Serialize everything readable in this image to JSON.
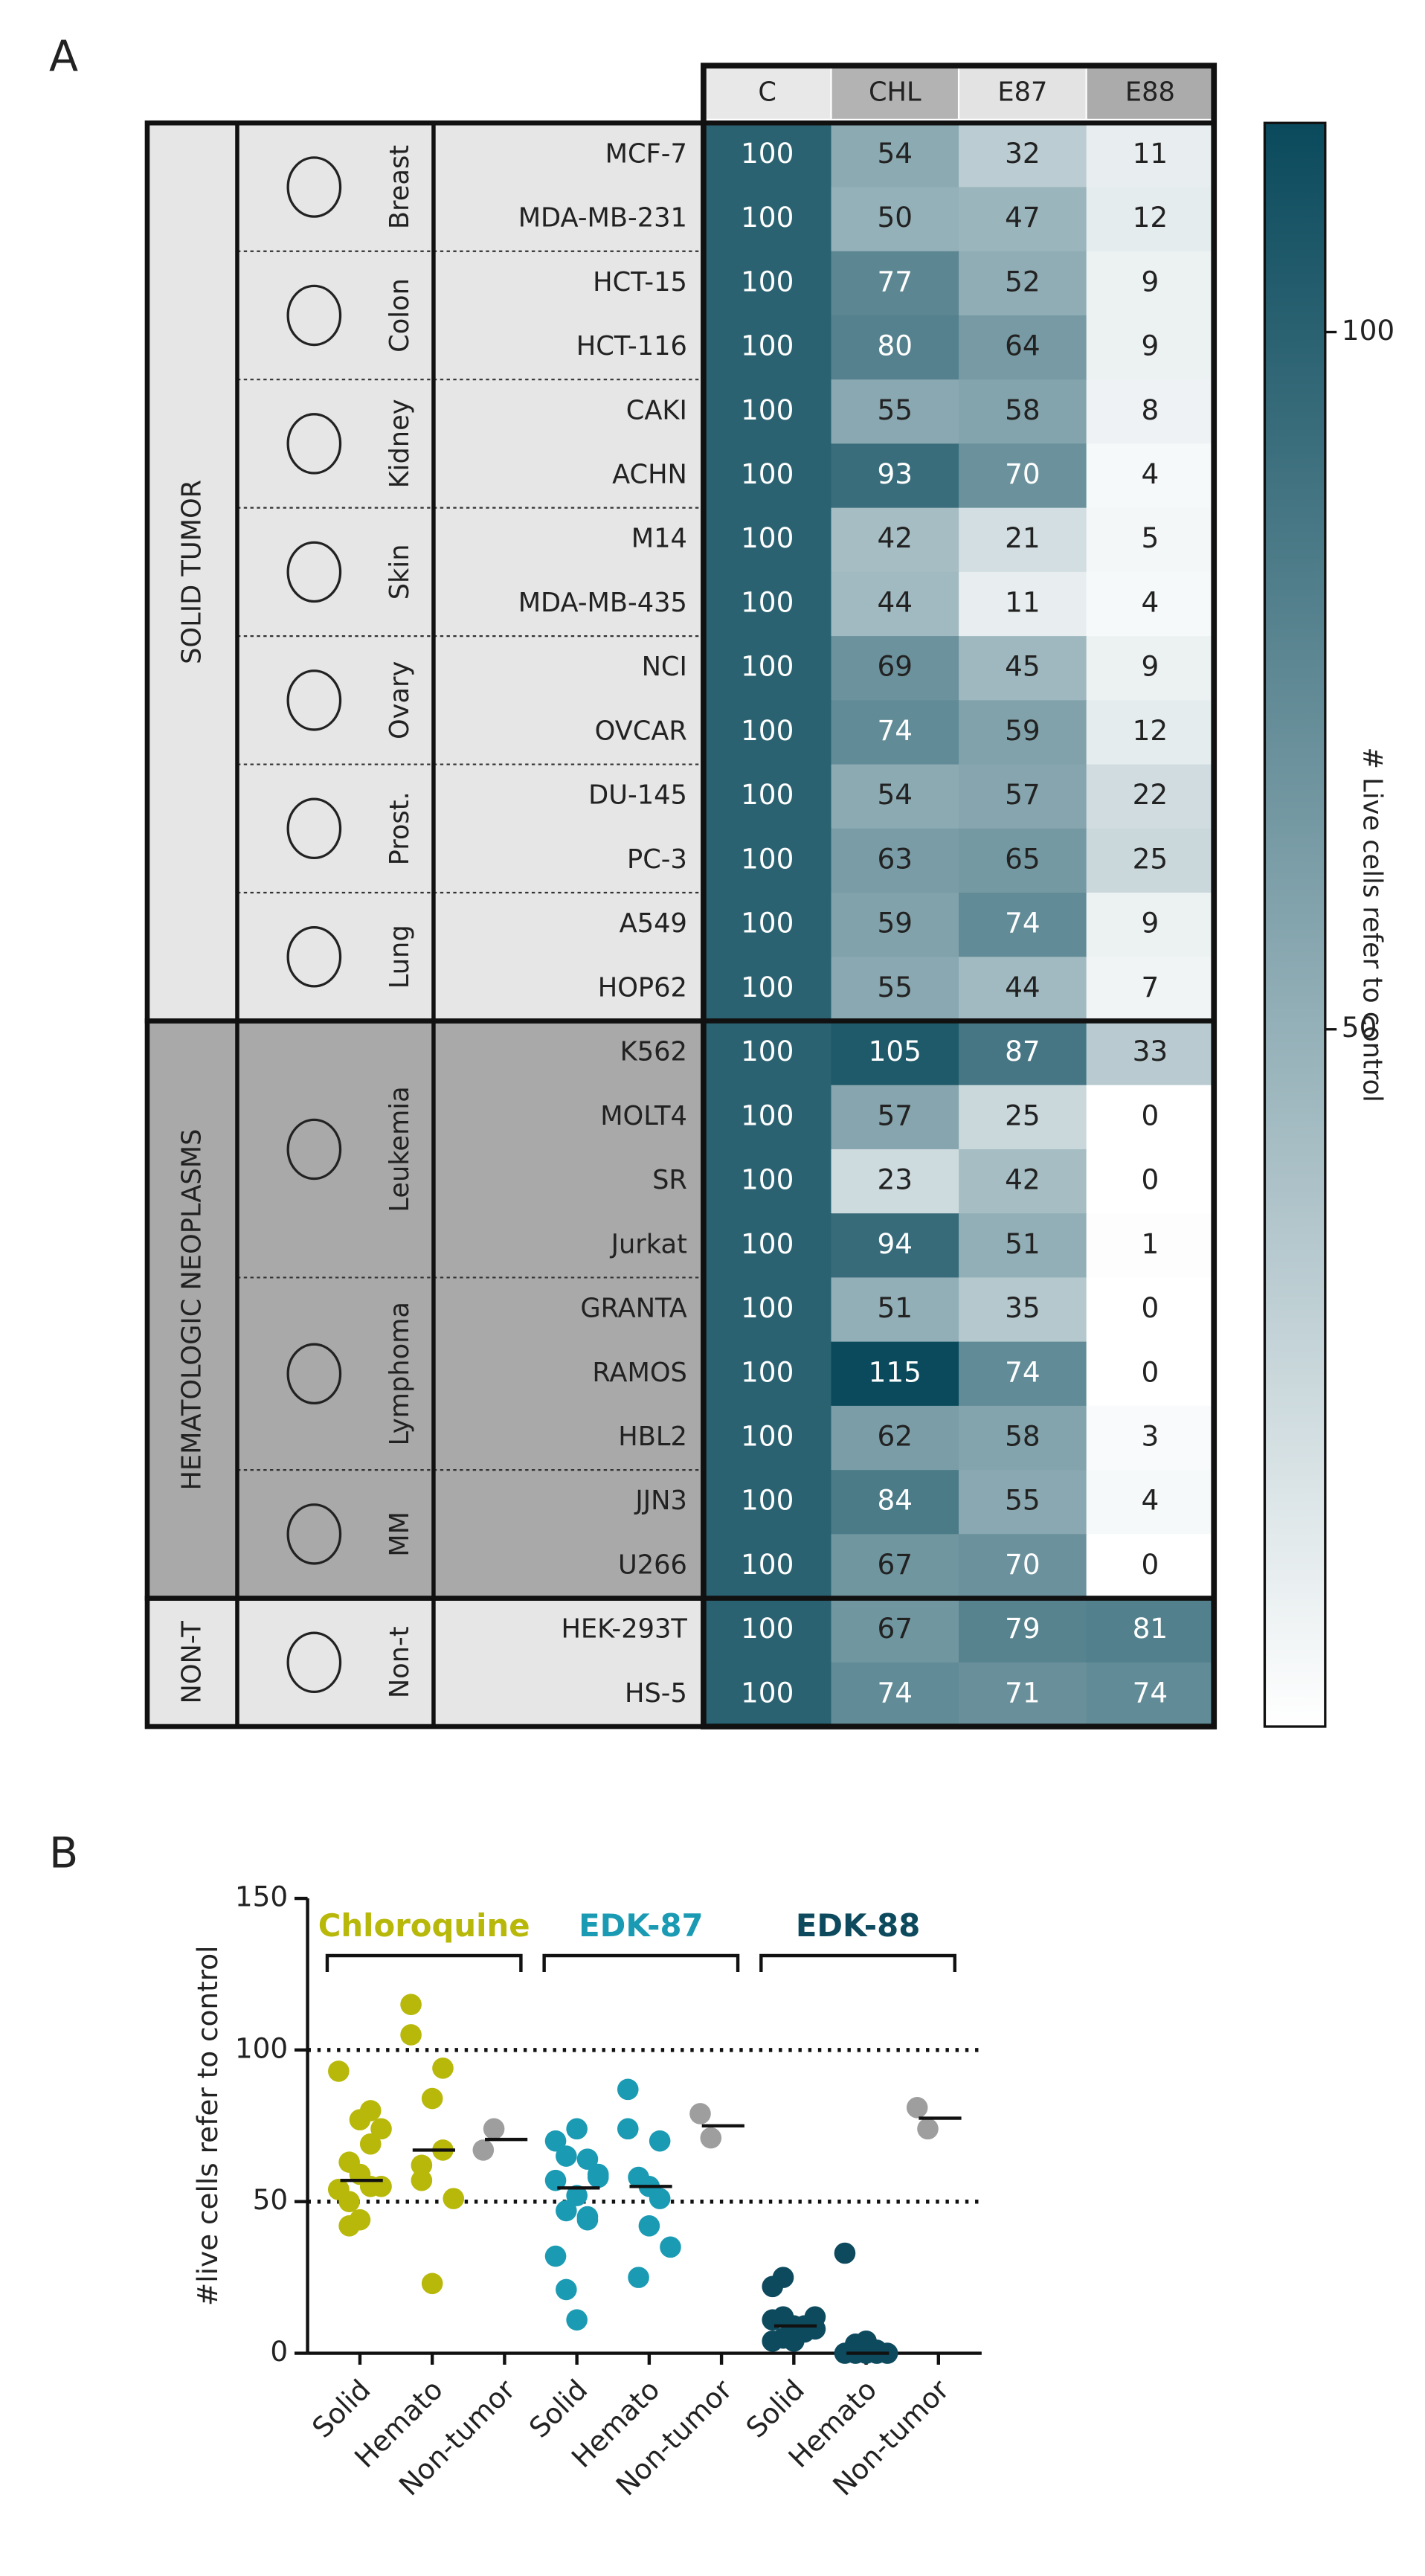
{
  "chart_data": [
    {
      "type": "heatmap",
      "panel": "A",
      "columns": [
        "C",
        "CHL",
        "E87",
        "E88"
      ],
      "column_colors": [
        "#e8e8e8",
        "#b3b3b3",
        "#e3e3e3",
        "#ababab"
      ],
      "color_low": "#ffffff",
      "color_high": "#0a4a5c",
      "colorbar": {
        "label": "# Live cells refer to control",
        "zlim": [
          0,
          115
        ],
        "ticks": [
          50,
          100
        ]
      },
      "groups": [
        {
          "name": "SOLID TUMOR",
          "background": "#e6e6e6",
          "organs": [
            {
              "name": "Breast",
              "rows": [
                {
                  "name": "MCF-7",
                  "values": [
                    100,
                    54,
                    32,
                    11
                  ]
                },
                {
                  "name": "MDA-MB-231",
                  "values": [
                    100,
                    50,
                    47,
                    12
                  ]
                }
              ]
            },
            {
              "name": "Colon",
              "rows": [
                {
                  "name": "HCT-15",
                  "values": [
                    100,
                    77,
                    52,
                    9
                  ]
                },
                {
                  "name": "HCT-116",
                  "values": [
                    100,
                    80,
                    64,
                    9
                  ]
                }
              ]
            },
            {
              "name": "Kidney",
              "rows": [
                {
                  "name": "CAKI",
                  "values": [
                    100,
                    55,
                    58,
                    8
                  ]
                },
                {
                  "name": "ACHN",
                  "values": [
                    100,
                    93,
                    70,
                    4
                  ]
                }
              ]
            },
            {
              "name": "Skin",
              "rows": [
                {
                  "name": "M14",
                  "values": [
                    100,
                    42,
                    21,
                    5
                  ]
                },
                {
                  "name": "MDA-MB-435",
                  "values": [
                    100,
                    44,
                    11,
                    4
                  ]
                }
              ]
            },
            {
              "name": "Ovary",
              "rows": [
                {
                  "name": "NCI",
                  "values": [
                    100,
                    69,
                    45,
                    9
                  ]
                },
                {
                  "name": "OVCAR",
                  "values": [
                    100,
                    74,
                    59,
                    12
                  ]
                }
              ]
            },
            {
              "name": "Prost.",
              "rows": [
                {
                  "name": "DU-145",
                  "values": [
                    100,
                    54,
                    57,
                    22
                  ]
                },
                {
                  "name": "PC-3",
                  "values": [
                    100,
                    63,
                    65,
                    25
                  ]
                }
              ]
            },
            {
              "name": "Lung",
              "rows": [
                {
                  "name": "A549",
                  "values": [
                    100,
                    59,
                    74,
                    9
                  ]
                },
                {
                  "name": "HOP62",
                  "values": [
                    100,
                    55,
                    44,
                    7
                  ]
                }
              ]
            }
          ]
        },
        {
          "name": "HEMATOLOGIC NEOPLASMS",
          "background": "#a9a9a9",
          "organs": [
            {
              "name": "Leukemia",
              "rows": [
                {
                  "name": "K562",
                  "values": [
                    100,
                    105,
                    87,
                    33
                  ]
                },
                {
                  "name": "MOLT4",
                  "values": [
                    100,
                    57,
                    25,
                    0
                  ]
                },
                {
                  "name": "SR",
                  "values": [
                    100,
                    23,
                    42,
                    0
                  ]
                },
                {
                  "name": "Jurkat",
                  "values": [
                    100,
                    94,
                    51,
                    1
                  ]
                }
              ]
            },
            {
              "name": "Lymphoma",
              "rows": [
                {
                  "name": "GRANTA",
                  "values": [
                    100,
                    51,
                    35,
                    0
                  ]
                },
                {
                  "name": "RAMOS",
                  "values": [
                    100,
                    115,
                    74,
                    0
                  ]
                },
                {
                  "name": "HBL2",
                  "values": [
                    100,
                    62,
                    58,
                    3
                  ]
                }
              ]
            },
            {
              "name": "MM",
              "rows": [
                {
                  "name": "JJN3",
                  "values": [
                    100,
                    84,
                    55,
                    4
                  ]
                },
                {
                  "name": "U266",
                  "values": [
                    100,
                    67,
                    70,
                    0
                  ]
                }
              ]
            }
          ]
        },
        {
          "name": "NON-T",
          "background": "#e6e6e6",
          "organs": [
            {
              "name": "Non-t",
              "rows": [
                {
                  "name": "HEK-293T",
                  "values": [
                    100,
                    67,
                    79,
                    81
                  ]
                },
                {
                  "name": "HS-5",
                  "values": [
                    100,
                    74,
                    71,
                    74
                  ]
                }
              ]
            }
          ]
        }
      ]
    },
    {
      "type": "scatter",
      "panel": "B",
      "ylabel": "#live cells refer to control",
      "categories": [
        "Solid",
        "Hemato",
        "Non-tumor",
        "Solid",
        "Hemato",
        "Non-tumor",
        "Solid",
        "Hemato",
        "Non-tumor"
      ],
      "ylim": [
        0,
        150
      ],
      "yticks": [
        0,
        50,
        100,
        150
      ],
      "reference_lines": [
        50,
        100
      ],
      "nontumor_color": "#9e9e9e",
      "series": [
        {
          "name": "Chloroquine",
          "color": "#b8b80a",
          "values": [
            [
              54,
              50,
              77,
              80,
              55,
              93,
              42,
              44,
              69,
              74,
              54,
              63,
              59,
              55
            ],
            [
              105,
              57,
              23,
              94,
              51,
              115,
              62,
              84,
              67
            ],
            [
              67,
              74
            ]
          ]
        },
        {
          "name": "EDK-87",
          "color": "#1a9bb3",
          "values": [
            [
              32,
              47,
              52,
              64,
              58,
              70,
              21,
              11,
              45,
              59,
              57,
              65,
              74,
              44
            ],
            [
              87,
              25,
              42,
              51,
              35,
              74,
              58,
              55,
              70
            ],
            [
              79,
              71
            ]
          ]
        },
        {
          "name": "EDK-88",
          "color": "#0d4a5e",
          "values": [
            [
              11,
              12,
              9,
              9,
              8,
              4,
              5,
              4,
              9,
              12,
              22,
              25,
              9,
              7
            ],
            [
              33,
              0,
              0,
              1,
              0,
              0,
              3,
              4,
              0
            ],
            [
              81,
              74
            ]
          ]
        }
      ]
    }
  ]
}
